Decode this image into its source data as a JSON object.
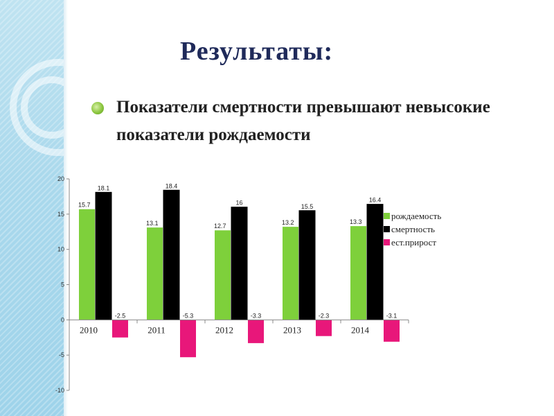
{
  "slide": {
    "title": "Результаты:",
    "bullet": "Показатели смертности превышают невысокие показатели рождаемости"
  },
  "chart_data": {
    "type": "bar",
    "categories": [
      "2010",
      "2011",
      "2012",
      "2013",
      "2014"
    ],
    "series": [
      {
        "name": "рождаемость",
        "color": "#7ed03b",
        "values": [
          15.7,
          13.1,
          12.7,
          13.2,
          13.3
        ]
      },
      {
        "name": "смертность",
        "color": "#000000",
        "values": [
          18.1,
          18.4,
          16,
          15.5,
          16.4
        ]
      },
      {
        "name": "ест.прирост",
        "color": "#e8177a",
        "values": [
          -2.5,
          -5.3,
          -3.3,
          -2.3,
          -3.1
        ]
      }
    ],
    "ylim": [
      -10,
      20
    ],
    "yticks": [
      -10,
      -5,
      0,
      5,
      10,
      15,
      20
    ],
    "legend": "right",
    "grid": false
  }
}
